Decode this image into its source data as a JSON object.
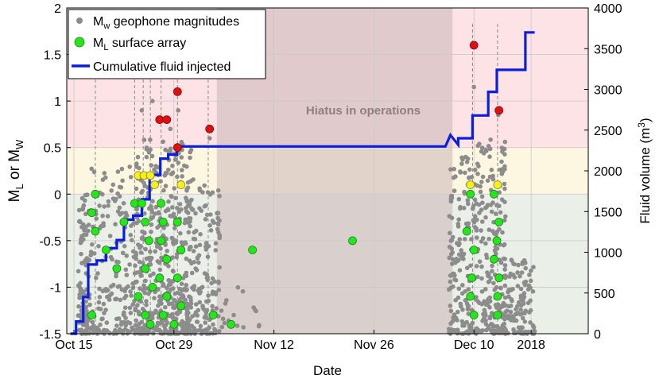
{
  "chart_data": {
    "type": "scatter",
    "xlabel": "Date",
    "ylabel_left": [
      "M",
      "L",
      " or M",
      "W"
    ],
    "ylabel_right": [
      "Fluid volume (m",
      "3",
      ")"
    ],
    "x_axis": {
      "range_days_since_start": [
        -1,
        72
      ],
      "ticks": [
        {
          "day": 0,
          "label": "Oct 15"
        },
        {
          "day": 14,
          "label": "Oct 29"
        },
        {
          "day": 28,
          "label": "Nov 12"
        },
        {
          "day": 42,
          "label": "Nov 26"
        },
        {
          "day": 56,
          "label": "Dec 10"
        },
        {
          "day": 64,
          "label": "2018"
        }
      ]
    },
    "y_left": {
      "range": [
        -1.5,
        2
      ],
      "ticks": [
        "-1.5",
        "-1",
        "-0.5",
        "0",
        "0.5",
        "1",
        "1.5",
        "2"
      ]
    },
    "y_right": {
      "range": [
        0,
        4000
      ],
      "ticks": [
        "0",
        "500",
        "1000",
        "1500",
        "2000",
        "2500",
        "3000",
        "3500",
        "4000"
      ]
    },
    "grid": true,
    "legend_position": "top-left",
    "legend": [
      {
        "label_main": "M",
        "label_sub": "w",
        "label_rest": " geophone magnitudes",
        "marker": "gray-dot"
      },
      {
        "label_main": "M",
        "label_sub": "L",
        "label_rest": " surface array",
        "marker": "green-circle"
      },
      {
        "label_main": "Cumulative fluid injected",
        "label_sub": "",
        "label_rest": "",
        "marker": "blue-line"
      }
    ],
    "annotation": "Hiatus in operations",
    "colors": {
      "red_band": "#fde3e6",
      "yellow_band": "#fdf6e0",
      "green_band": "#eaf0e8",
      "hiatus": "#cbb6b6",
      "geophone": "#8c8c8c",
      "surface_green": "#22e81a",
      "surface_yellow": "#f6ee1e",
      "surface_red": "#e01010",
      "injected": "#0a1ee0"
    },
    "bands": [
      {
        "color": "red",
        "y_range": [
          0.5,
          2
        ]
      },
      {
        "color": "yellow",
        "y_range": [
          0,
          0.5
        ]
      },
      {
        "color": "green",
        "y_range": [
          -1.5,
          0
        ]
      }
    ],
    "hiatus_days": [
      20,
      53
    ],
    "event_lines_days": [
      3,
      8.5,
      9.7,
      10.7,
      12.2,
      14.5,
      18.8,
      55.8,
      59.3
    ],
    "surface_events": [
      {
        "day": 3,
        "ml": 0
      },
      {
        "day": 2.5,
        "ml": -0.2
      },
      {
        "day": 3,
        "ml": -0.4
      },
      {
        "day": 2.5,
        "ml": -1.3
      },
      {
        "day": 4.5,
        "ml": -0.6
      },
      {
        "day": 6,
        "ml": -0.8
      },
      {
        "day": 7,
        "ml": -0.3
      },
      {
        "day": 8.5,
        "ml": -0.1
      },
      {
        "day": 9,
        "ml": 0.2
      },
      {
        "day": 9.8,
        "ml": 0.2
      },
      {
        "day": 10.7,
        "ml": 0.2
      },
      {
        "day": 9.5,
        "ml": -0.1
      },
      {
        "day": 10,
        "ml": -0.3
      },
      {
        "day": 10.5,
        "ml": -0.5
      },
      {
        "day": 10,
        "ml": -0.8
      },
      {
        "day": 11,
        "ml": -1.0
      },
      {
        "day": 9,
        "ml": -1.1
      },
      {
        "day": 10,
        "ml": -1.3
      },
      {
        "day": 10.7,
        "ml": -1.4
      },
      {
        "day": 11.3,
        "ml": 0.1
      },
      {
        "day": 12,
        "ml": 0.8
      },
      {
        "day": 13,
        "ml": 0.8
      },
      {
        "day": 12.2,
        "ml": -0.1
      },
      {
        "day": 12.5,
        "ml": -0.3
      },
      {
        "day": 12.2,
        "ml": -0.5
      },
      {
        "day": 13,
        "ml": -0.7
      },
      {
        "day": 12,
        "ml": -0.9
      },
      {
        "day": 13,
        "ml": -1.1
      },
      {
        "day": 12.5,
        "ml": -1.3
      },
      {
        "day": 14.5,
        "ml": 1.1
      },
      {
        "day": 14.5,
        "ml": 0.5
      },
      {
        "day": 15,
        "ml": 0.1
      },
      {
        "day": 14.5,
        "ml": -0.3
      },
      {
        "day": 15,
        "ml": -0.6
      },
      {
        "day": 14.5,
        "ml": -0.9
      },
      {
        "day": 15,
        "ml": -1.2
      },
      {
        "day": 14,
        "ml": -1.4
      },
      {
        "day": 19,
        "ml": 0.7
      },
      {
        "day": 19.5,
        "ml": -1.3
      },
      {
        "day": 22,
        "ml": -1.4
      },
      {
        "day": 25,
        "ml": -0.6
      },
      {
        "day": 39,
        "ml": -0.5
      },
      {
        "day": 55.5,
        "ml": 0.1
      },
      {
        "day": 55.5,
        "ml": 0
      },
      {
        "day": 55,
        "ml": -0.4
      },
      {
        "day": 56,
        "ml": -0.6
      },
      {
        "day": 55.7,
        "ml": -0.9
      },
      {
        "day": 55.5,
        "ml": -1.1
      },
      {
        "day": 56,
        "ml": -1.3
      },
      {
        "day": 56,
        "ml": 1.6
      },
      {
        "day": 59.3,
        "ml": 0.1
      },
      {
        "day": 58.8,
        "ml": 0
      },
      {
        "day": 59.5,
        "ml": -0.3
      },
      {
        "day": 59.2,
        "ml": -0.5
      },
      {
        "day": 58.8,
        "ml": -0.7
      },
      {
        "day": 59.5,
        "ml": -0.9
      },
      {
        "day": 59.3,
        "ml": -1.1
      },
      {
        "day": 59.3,
        "ml": -1.3
      },
      {
        "day": 59.5,
        "ml": 0.9
      }
    ],
    "cumulative_injected": [
      [
        -0.5,
        0
      ],
      [
        0.3,
        0
      ],
      [
        0.3,
        150
      ],
      [
        1.3,
        150
      ],
      [
        1.3,
        450
      ],
      [
        2,
        450
      ],
      [
        2,
        850
      ],
      [
        3.2,
        850
      ],
      [
        3.2,
        900
      ],
      [
        4.5,
        900
      ],
      [
        4.5,
        1050
      ],
      [
        6,
        1050
      ],
      [
        6,
        1150
      ],
      [
        7,
        1150
      ],
      [
        7,
        1400
      ],
      [
        8.3,
        1400
      ],
      [
        8.3,
        1450
      ],
      [
        9.5,
        1450
      ],
      [
        9.5,
        1650
      ],
      [
        10.6,
        1650
      ],
      [
        10.6,
        1950
      ],
      [
        12.1,
        1950
      ],
      [
        12.1,
        2150
      ],
      [
        13.2,
        2150
      ],
      [
        13.2,
        2200
      ],
      [
        14.4,
        2200
      ],
      [
        14.4,
        2300
      ],
      [
        52,
        2300
      ],
      [
        52.7,
        2440
      ],
      [
        53.8,
        2320
      ],
      [
        53.8,
        2400
      ],
      [
        55.8,
        2400
      ],
      [
        55.8,
        2680
      ],
      [
        58,
        2680
      ],
      [
        58,
        2970
      ],
      [
        59.2,
        2970
      ],
      [
        59.2,
        3240
      ],
      [
        63.2,
        3240
      ],
      [
        63.2,
        3700
      ],
      [
        64.5,
        3700
      ]
    ]
  }
}
